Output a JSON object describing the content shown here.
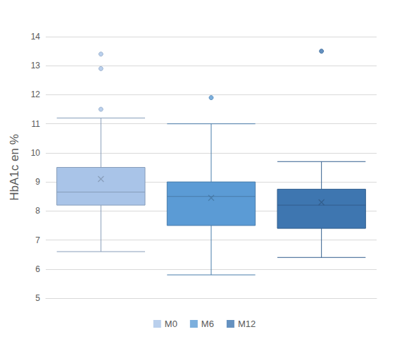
{
  "chart_data": {
    "type": "boxplot",
    "y_label": "HbA1c en %",
    "ylim": [
      5,
      14
    ],
    "yticks": [
      5,
      6,
      7,
      8,
      9,
      10,
      11,
      12,
      13,
      14
    ],
    "grid": true,
    "legend": "bottom",
    "series": [
      {
        "name": "M0",
        "color": "#a9c4e8",
        "min": 6.6,
        "q1": 8.2,
        "median": 8.65,
        "q3": 9.5,
        "max": 11.2,
        "mean": 9.1,
        "outliers": [
          11.5,
          12.9,
          13.4
        ]
      },
      {
        "name": "M6",
        "color": "#5b9bd5",
        "min": 5.8,
        "q1": 7.5,
        "median": 8.5,
        "q3": 9.0,
        "max": 11.0,
        "mean": 8.45,
        "outliers": [
          11.9
        ]
      },
      {
        "name": "M12",
        "color": "#3e76b0",
        "min": 6.4,
        "q1": 7.4,
        "median": 8.2,
        "q3": 8.75,
        "max": 9.7,
        "mean": 8.3,
        "outliers": [
          13.5
        ]
      }
    ]
  }
}
